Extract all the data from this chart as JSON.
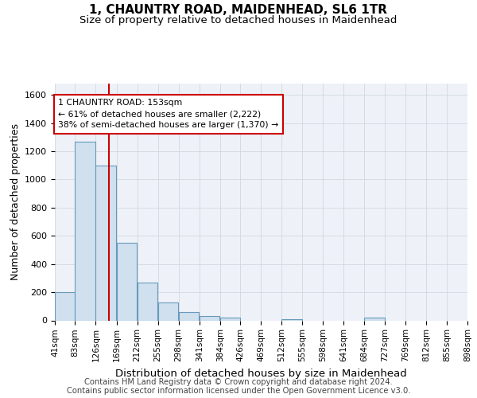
{
  "title": "1, CHAUNTRY ROAD, MAIDENHEAD, SL6 1TR",
  "subtitle": "Size of property relative to detached houses in Maidenhead",
  "xlabel": "Distribution of detached houses by size in Maidenhead",
  "ylabel": "Number of detached properties",
  "footer_line1": "Contains HM Land Registry data © Crown copyright and database right 2024.",
  "footer_line2": "Contains public sector information licensed under the Open Government Licence v3.0.",
  "bar_edges": [
    41,
    83,
    126,
    169,
    212,
    255,
    298,
    341,
    384,
    426,
    469,
    512,
    555,
    598,
    641,
    684,
    727,
    769,
    812,
    855,
    898
  ],
  "bar_values": [
    200,
    1270,
    1100,
    550,
    270,
    125,
    60,
    30,
    20,
    0,
    0,
    10,
    0,
    0,
    0,
    20,
    0,
    0,
    0,
    0,
    0
  ],
  "bar_color": "#d0e0ee",
  "bar_edge_color": "#6699bb",
  "vline_x": 153,
  "vline_color": "#cc0000",
  "annotation_text": "1 CHAUNTRY ROAD: 153sqm\n← 61% of detached houses are smaller (2,222)\n38% of semi-detached houses are larger (1,370) →",
  "annotation_box_color": "#cc0000",
  "ylim": [
    0,
    1680
  ],
  "xlim": [
    41,
    898
  ],
  "yticks": [
    0,
    200,
    400,
    600,
    800,
    1000,
    1200,
    1400,
    1600
  ],
  "xtick_labels": [
    "41sqm",
    "83sqm",
    "126sqm",
    "169sqm",
    "212sqm",
    "255sqm",
    "298sqm",
    "341sqm",
    "384sqm",
    "426sqm",
    "469sqm",
    "512sqm",
    "555sqm",
    "598sqm",
    "641sqm",
    "684sqm",
    "727sqm",
    "769sqm",
    "812sqm",
    "855sqm",
    "898sqm"
  ],
  "grid_color": "#d0d8e0",
  "bg_color": "#eef2f8",
  "title_fontsize": 11,
  "subtitle_fontsize": 9.5,
  "axis_label_fontsize": 9,
  "tick_fontsize": 8,
  "footer_fontsize": 7.2
}
